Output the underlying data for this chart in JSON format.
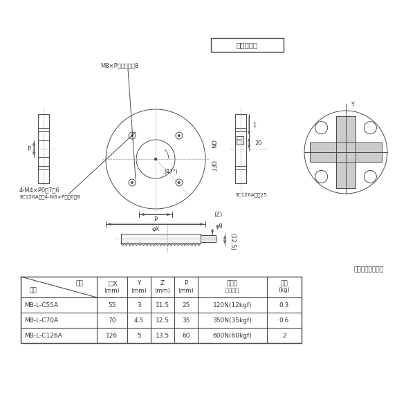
{
  "bg_color": "#ffffff",
  "line_color": "#4a4a4a",
  "title_box_text": "形状・仕様",
  "material_text": "材質：ステンレス",
  "ann_m8": "M8×P１．２５深8",
  "ann_4m4": "4-M4×P0．7深6",
  "ann_c126": "‼C126Aのみ4-M6×P１．0深8",
  "ann_on": "ON",
  "ann_off": "OFF",
  "ann_47": "(47°)",
  "ann_z": "(Z)",
  "ann_phix": "φX",
  "ann_p": "P",
  "ann_y": "Y",
  "ann_phi9": "φ9",
  "ann_125": "(12.5)",
  "ann_20": "20",
  "ann_c126_25": "‼C126Aのみ25",
  "ann_1": "1",
  "table_header_row1": [
    "項目",
    "□X",
    "Y",
    "Z",
    "P",
    "吸着力",
    "質量"
  ],
  "table_header_row2": [
    "形式",
    "(mm)",
    "(mm)",
    "(mm)",
    "(mm)",
    "図面表記",
    "(kg)"
  ],
  "table_data": [
    [
      "MB-L-C55A",
      "55",
      "3",
      "11.5",
      "25",
      "120N(12kgf)",
      "0.3"
    ],
    [
      "MB-L-C70A",
      "70",
      "4.5",
      "12.5",
      "35",
      "350N(35kgf)",
      "0.6"
    ],
    [
      "MB-L-C126A",
      "126",
      "5",
      "13.5",
      "60",
      "600N(60kgf)",
      "2"
    ]
  ]
}
